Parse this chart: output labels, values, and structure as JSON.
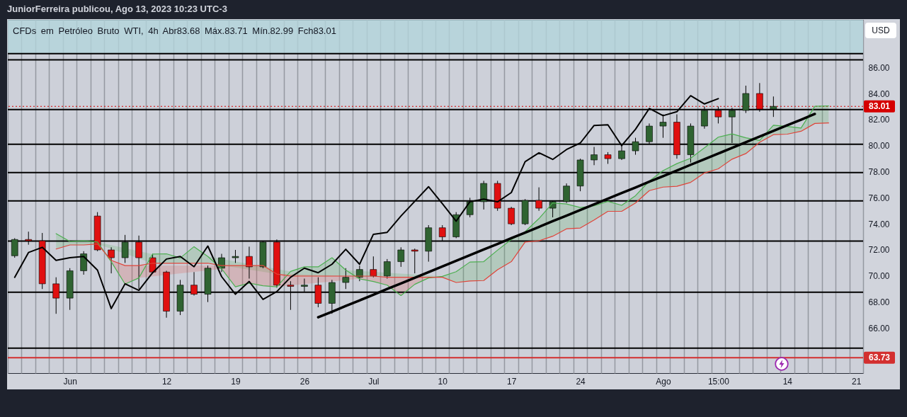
{
  "chart_data": {
    "type": "candlestick",
    "title": "CFDs em Petróleo Bruto WTI, 4h Abr83.68 Máx.83.71 Mín.82.99 Fch83.01",
    "subtitle": "JuniorFerreira publicou, Ago 13, 2023 10:23 UTC-3",
    "ylabel": "USD",
    "categories": [
      null,
      null,
      null,
      null,
      "Jun",
      null,
      null,
      null,
      null,
      null,
      null,
      "12",
      null,
      null,
      null,
      null,
      "19",
      null,
      null,
      null,
      null,
      "26",
      null,
      null,
      null,
      null,
      "Jul",
      null,
      null,
      null,
      null,
      "10",
      null,
      null,
      null,
      null,
      "17",
      null,
      null,
      null,
      null,
      "24",
      null,
      null,
      null,
      null,
      null,
      "Ago",
      null,
      null,
      null,
      "15:00",
      null,
      null,
      null,
      null,
      "14",
      null,
      null,
      null,
      null,
      "21"
    ],
    "ohlc": [
      [
        71.55,
        72.9,
        71.4,
        72.8
      ],
      [
        72.8,
        73.4,
        72.4,
        72.7
      ],
      [
        72.7,
        73.3,
        69.0,
        69.4
      ],
      [
        69.4,
        69.9,
        67.1,
        68.3
      ],
      [
        68.3,
        70.6,
        67.4,
        70.4
      ],
      [
        70.4,
        71.9,
        70.1,
        71.7
      ],
      [
        74.6,
        74.9,
        71.9,
        72.0
      ],
      [
        72.0,
        72.2,
        70.2,
        71.4
      ],
      [
        71.4,
        73.15,
        71.0,
        72.6
      ],
      [
        72.6,
        73.1,
        69.0,
        71.4
      ],
      [
        71.4,
        71.7,
        70.2,
        70.3
      ],
      [
        70.3,
        70.4,
        66.8,
        67.3
      ],
      [
        67.3,
        69.7,
        67.0,
        69.3
      ],
      [
        69.3,
        70.3,
        68.5,
        68.6
      ],
      [
        68.6,
        70.8,
        68.0,
        70.6
      ],
      [
        70.6,
        71.7,
        70.3,
        71.4
      ],
      [
        71.4,
        72.0,
        71.0,
        71.5
      ],
      [
        71.5,
        72.25,
        69.8,
        70.7
      ],
      [
        70.7,
        72.7,
        70.6,
        72.6
      ],
      [
        72.6,
        72.8,
        69.1,
        69.3
      ],
      [
        69.3,
        69.6,
        67.4,
        69.2
      ],
      [
        69.2,
        69.8,
        68.8,
        69.3
      ],
      [
        69.3,
        69.9,
        67.6,
        67.9
      ],
      [
        67.9,
        69.7,
        67.1,
        69.5
      ],
      [
        69.5,
        70.6,
        69.0,
        69.9
      ],
      [
        69.9,
        70.8,
        69.6,
        70.5
      ],
      [
        70.5,
        71.5,
        69.9,
        70.0
      ],
      [
        70.0,
        71.3,
        69.8,
        71.1
      ],
      [
        71.1,
        72.2,
        70.7,
        72.0
      ],
      [
        72.0,
        72.1,
        70.2,
        71.9
      ],
      [
        71.9,
        73.9,
        71.1,
        73.7
      ],
      [
        73.7,
        73.9,
        72.7,
        73.0
      ],
      [
        73.0,
        74.9,
        72.9,
        74.7
      ],
      [
        74.7,
        76.0,
        74.5,
        75.7
      ],
      [
        75.7,
        77.3,
        75.1,
        77.1
      ],
      [
        77.1,
        77.3,
        75.0,
        75.2
      ],
      [
        75.2,
        75.3,
        73.9,
        74.0
      ],
      [
        74.0,
        75.9,
        73.9,
        75.8
      ],
      [
        75.8,
        76.8,
        75.0,
        75.2
      ],
      [
        75.2,
        75.8,
        74.5,
        75.7
      ],
      [
        75.7,
        77.1,
        75.6,
        76.9
      ],
      [
        76.9,
        79.0,
        76.5,
        78.9
      ],
      [
        78.9,
        79.9,
        78.5,
        79.3
      ],
      [
        79.3,
        79.5,
        78.6,
        79.0
      ],
      [
        79.0,
        80.1,
        78.9,
        79.6
      ],
      [
        79.6,
        80.6,
        79.3,
        80.3
      ],
      [
        80.3,
        81.7,
        80.1,
        81.5
      ],
      [
        81.5,
        82.4,
        80.6,
        81.8
      ],
      [
        81.8,
        82.4,
        79.0,
        79.3
      ],
      [
        79.3,
        81.7,
        78.7,
        81.5
      ],
      [
        81.5,
        83.0,
        81.3,
        82.7
      ],
      [
        82.7,
        83.0,
        81.7,
        82.2
      ],
      [
        82.2,
        82.9,
        80.2,
        82.7
      ],
      [
        82.7,
        84.6,
        82.5,
        84.0
      ],
      [
        84.0,
        84.8,
        82.6,
        82.8
      ],
      [
        82.8,
        83.77,
        82.2,
        83.01
      ],
      null,
      null,
      null,
      null,
      null,
      null
    ],
    "colors": [
      "#2f6331",
      "#e01010",
      "#e01010",
      "#e01010",
      "#2f6331",
      "#2f6331",
      "#e01010",
      "#e01010",
      "#2f6331",
      "#e01010",
      "#e01010",
      "#e01010",
      "#2f6331",
      "#e01010",
      "#2f6331",
      "#2f6331",
      "#2f6331",
      "#e01010",
      "#2f6331",
      "#e01010",
      "#e01010",
      "#2f6331",
      "#e01010",
      "#2f6331",
      "#2f6331",
      "#2f6331",
      "#e01010",
      "#2f6331",
      "#2f6331",
      "#e01010",
      "#2f6331",
      "#e01010",
      "#2f6331",
      "#2f6331",
      "#2f6331",
      "#e01010",
      "#e01010",
      "#2f6331",
      "#e01010",
      "#2f6331",
      "#2f6331",
      "#2f6331",
      "#2f6331",
      "#e01010",
      "#2f6331",
      "#2f6331",
      "#2f6331",
      "#2f6331",
      "#e01010",
      "#2f6331",
      "#2f6331",
      "#e01010",
      "#2f6331",
      "#2f6331",
      "#e01010",
      "#2f6331",
      null,
      null,
      null,
      null,
      null,
      null
    ],
    "series": [
      {
        "type": "line",
        "color": "#4caf50",
        "values": [
          null,
          null,
          null,
          73.25,
          72.65,
          72.7,
          72.6,
          71.1,
          69.38,
          69.85,
          71.68,
          71.7,
          71.38,
          72.25,
          71.5,
          70.55,
          69.17,
          69.45,
          69.25,
          69.17,
          70.35,
          70.7,
          70.7,
          71.4,
          70.45,
          69.78,
          69.58,
          69.3,
          68.5,
          69.36,
          69.85,
          69.97,
          70.33,
          71.07,
          71.1,
          71.98,
          72.8,
          73.4,
          74.4,
          75.6,
          75.52,
          75.25,
          75.38,
          75.73,
          75.42,
          76.16,
          77.28,
          78.08,
          78.62,
          79.03,
          79.83,
          80.65,
          80.9,
          80.6,
          80.4,
          81.57,
          81.47,
          81.35,
          83.02,
          83.04,
          null,
          null
        ],
        "lower": [
          null,
          null,
          null,
          72.07,
          72.38,
          72.38,
          72.45,
          null,
          null,
          null,
          70.98,
          70.98,
          70.98,
          70.98,
          70.98,
          null,
          null,
          null,
          null,
          null,
          69.99,
          69.99,
          69.99,
          69.99,
          69.99,
          null,
          null,
          null,
          null,
          null,
          null,
          69.9,
          69.5,
          69.62,
          69.65,
          70.48,
          71.1,
          72.6,
          72.7,
          73.05,
          73.62,
          73.68,
          74.3,
          74.96,
          74.96,
          75.6,
          76.55,
          76.82,
          76.88,
          77.18,
          77.9,
          78.22,
          78.96,
          79.39,
          80.25,
          80.84,
          80.88,
          81.1,
          81.7,
          81.74,
          null,
          null
        ],
        "upper": [
          null,
          null,
          null,
          73.25,
          72.65,
          72.7,
          72.6,
          null,
          null,
          null,
          71.68,
          71.7,
          71.38,
          72.25,
          71.5,
          null,
          null,
          null,
          null,
          null,
          70.35,
          70.7,
          70.7,
          71.4,
          70.45,
          null,
          null,
          null,
          null,
          null,
          null,
          69.97,
          70.33,
          71.07,
          71.1,
          71.98,
          72.8,
          73.4,
          74.4,
          75.6,
          75.52,
          75.25,
          75.38,
          75.73,
          75.42,
          76.16,
          77.28,
          78.08,
          78.62,
          79.03,
          79.83,
          80.65,
          80.9,
          80.6,
          80.4,
          81.57,
          81.47,
          81.35,
          83.02,
          83.04,
          null,
          null
        ]
      },
      {
        "type": "line",
        "color": "#e0443a",
        "values": [
          null,
          null,
          null,
          72.07,
          72.38,
          72.38,
          72.45,
          71.2,
          70.8,
          70.8,
          70.98,
          70.98,
          70.98,
          70.98,
          70.98,
          70.8,
          70.8,
          70.8,
          70.8,
          70.15,
          69.99,
          69.99,
          69.99,
          69.99,
          69.99,
          69.99,
          69.99,
          69.9,
          69.9,
          69.9,
          69.9,
          69.9,
          69.5,
          69.62,
          69.65,
          70.48,
          71.1,
          72.6,
          72.7,
          73.05,
          73.62,
          73.68,
          74.3,
          74.96,
          74.96,
          75.6,
          76.55,
          76.82,
          76.88,
          77.18,
          77.9,
          78.22,
          78.96,
          79.39,
          80.25,
          80.84,
          80.88,
          81.1,
          81.7,
          81.74,
          null,
          null
        ],
        "lower": [
          null,
          null,
          null,
          null,
          null,
          null,
          null,
          71.1,
          69.38,
          69.85,
          null,
          null,
          null,
          null,
          null,
          70.55,
          69.17,
          69.45,
          69.25,
          69.17,
          null,
          null,
          null,
          null,
          null,
          69.78,
          69.58,
          69.3,
          68.5,
          69.36,
          69.85,
          null,
          null,
          null,
          null,
          null,
          null,
          null,
          null,
          null,
          null,
          null,
          null,
          null,
          null,
          null,
          null,
          null,
          null,
          null,
          null,
          null,
          null,
          null,
          null,
          null,
          null,
          null,
          null,
          null,
          null,
          null
        ],
        "upper": [
          null,
          null,
          null,
          null,
          null,
          null,
          null,
          71.2,
          70.8,
          70.8,
          null,
          null,
          null,
          null,
          null,
          70.8,
          70.8,
          70.8,
          70.8,
          70.15,
          null,
          null,
          null,
          null,
          null,
          69.99,
          69.99,
          69.9,
          69.9,
          69.9,
          69.9,
          null,
          null,
          null,
          null,
          null,
          null,
          null,
          null,
          null,
          null,
          null,
          null,
          null,
          null,
          null,
          null,
          null,
          null,
          null,
          null,
          null,
          null,
          null,
          null,
          null,
          null,
          null,
          null,
          null,
          null,
          null
        ]
      },
      {
        "type": "line",
        "color": "#000000",
        "values": [
          69.9,
          71.8,
          72.2,
          71.2,
          71.4,
          71.5,
          70.45,
          67.5,
          69.4,
          68.9,
          70.25,
          71.3,
          71.5,
          70.71,
          72.3,
          69.95,
          68.6,
          69.58,
          68.2,
          68.8,
          69.9,
          70.6,
          70.25,
          70.9,
          72.05,
          70.9,
          73.2,
          73.35,
          74.6,
          75.73,
          76.85,
          75.55,
          74.2,
          75.7,
          75.9,
          75.69,
          76.4,
          78.77,
          79.45,
          78.94,
          79.7,
          80.2,
          81.55,
          81.6,
          80.0,
          81.25,
          82.85,
          82.3,
          82.6,
          83.83,
          83.2,
          83.6,
          null,
          null,
          null,
          null,
          null,
          null,
          null,
          null,
          null,
          null
        ]
      },
      {
        "type": "line",
        "color": "#000000",
        "values": [
          null,
          null,
          null,
          null,
          null,
          null,
          null,
          null,
          null,
          null,
          null,
          null,
          null,
          null,
          null,
          null,
          null,
          null,
          null,
          null,
          null,
          null,
          66.83,
          67.26,
          67.7,
          68.13,
          68.56,
          69.0,
          69.43,
          69.86,
          70.3,
          70.73,
          71.16,
          71.6,
          72.03,
          72.46,
          72.9,
          73.33,
          73.76,
          74.2,
          74.63,
          75.06,
          75.5,
          75.93,
          76.36,
          76.79,
          77.23,
          77.66,
          78.09,
          78.53,
          78.96,
          79.39,
          79.83,
          80.26,
          80.69,
          81.13,
          81.56,
          81.99,
          82.43,
          null,
          null,
          null
        ]
      }
    ],
    "ylim": [
      62.55,
      89.65
    ],
    "yticks": [
      {
        "value": 66,
        "label": "66.00"
      },
      {
        "value": 68,
        "label": "68.00"
      },
      {
        "value": 70,
        "label": "70.00"
      },
      {
        "value": 72,
        "label": "72.00"
      },
      {
        "value": 74,
        "label": "74.00"
      },
      {
        "value": 76,
        "label": "76.00"
      },
      {
        "value": 78,
        "label": "78.00"
      },
      {
        "value": 80,
        "label": "80.00"
      },
      {
        "value": 82,
        "label": "82.00"
      },
      {
        "value": 84,
        "label": "84.00"
      },
      {
        "value": 86,
        "label": "86.00"
      }
    ],
    "grid": "x",
    "bands": [
      {
        "axis": "y",
        "from": 87.05,
        "to": 89.65,
        "color": "#b3d4db"
      }
    ],
    "ref_lines": [
      {
        "axis": "y",
        "value": 87.05,
        "color": "#000000"
      },
      {
        "axis": "y",
        "value": 86.58,
        "color": "#000000"
      },
      {
        "axis": "y",
        "value": 82.76,
        "color": "#000000"
      },
      {
        "axis": "y",
        "value": 80.1,
        "color": "#000000"
      },
      {
        "axis": "y",
        "value": 77.93,
        "color": "#000000"
      },
      {
        "axis": "y",
        "value": 75.76,
        "color": "#000000"
      },
      {
        "axis": "y",
        "value": 72.68,
        "color": "#000000"
      },
      {
        "axis": "y",
        "value": 68.75,
        "color": "#000000"
      },
      {
        "axis": "y",
        "value": 64.46,
        "color": "#000000"
      },
      {
        "axis": "y",
        "value": 83.01,
        "label": "83.01",
        "color": "#d50000",
        "line_style": "dotted"
      },
      {
        "axis": "y",
        "value": 63.73,
        "label": "63.73",
        "color": "#d32f2f"
      }
    ]
  }
}
